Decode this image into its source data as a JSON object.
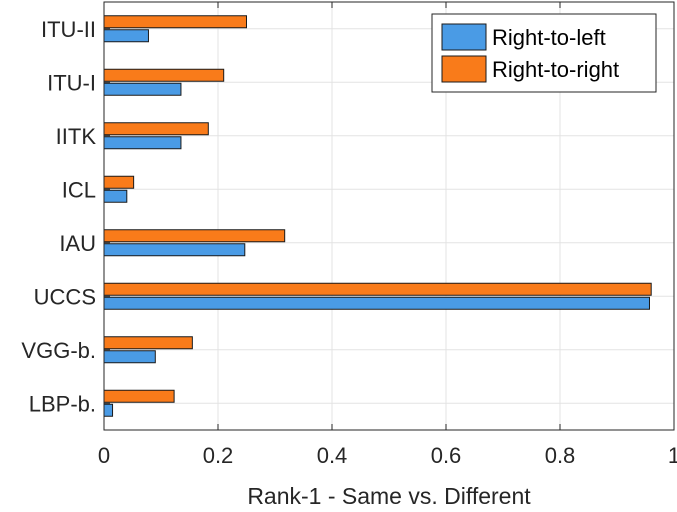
{
  "chart_data": {
    "type": "bar",
    "orientation": "horizontal",
    "categories": [
      "ITU-II",
      "ITU-I",
      "IITK",
      "ICL",
      "IAU",
      "UCCS",
      "VGG-b.",
      "LBP-b."
    ],
    "series": [
      {
        "name": "Right-to-left",
        "color": "#4a9be5",
        "values": [
          0.078,
          0.135,
          0.135,
          0.04,
          0.247,
          0.957,
          0.09,
          0.015
        ]
      },
      {
        "name": "Right-to-right",
        "color": "#f97b1a",
        "values": [
          0.25,
          0.21,
          0.183,
          0.052,
          0.317,
          0.96,
          0.155,
          0.123
        ]
      }
    ],
    "xlabel": "Rank-1 - Same vs. Different",
    "ylabel": "",
    "xlim": [
      0,
      1
    ],
    "xticks": [
      "0",
      "0.2",
      "0.4",
      "0.6",
      "0.8",
      "1"
    ],
    "grid": true,
    "legend_position": "top-right"
  }
}
